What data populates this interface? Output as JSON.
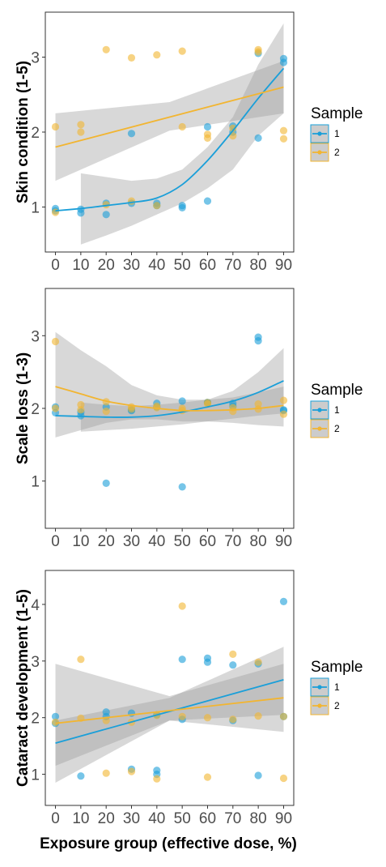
{
  "colors": {
    "sample1": "#1a9fd9",
    "sample2": "#f2b531",
    "band": "#9e9e9e"
  },
  "xlabel": "Exposure group (effective dose, %)",
  "chart_data": [
    {
      "type": "scatter",
      "ylabel": "Skin condition (1-5)",
      "ylim": [
        0.4,
        3.6
      ],
      "yticks": [
        1,
        2,
        3
      ],
      "xlim": [
        -4,
        94
      ],
      "xticks": [
        0,
        10,
        20,
        30,
        40,
        50,
        60,
        70,
        80,
        90
      ],
      "grid": false,
      "legend": {
        "title": "Sample",
        "position": "right",
        "items": [
          "1",
          "2"
        ]
      },
      "series": [
        {
          "name": "1",
          "points": [
            [
              0,
              0.98
            ],
            [
              0,
              0.95
            ],
            [
              10,
              0.97
            ],
            [
              10,
              0.92
            ],
            [
              20,
              1.05
            ],
            [
              20,
              0.9
            ],
            [
              30,
              1.98
            ],
            [
              30,
              1.05
            ],
            [
              40,
              1.05
            ],
            [
              40,
              1.02
            ],
            [
              50,
              1.02
            ],
            [
              50,
              0.99
            ],
            [
              60,
              2.07
            ],
            [
              60,
              1.08
            ],
            [
              70,
              2.08
            ],
            [
              70,
              2.0
            ],
            [
              80,
              3.05
            ],
            [
              80,
              1.92
            ],
            [
              90,
              2.98
            ],
            [
              90,
              2.93
            ]
          ],
          "fit": {
            "kind": "smooth-curve",
            "x": [
              0,
              10,
              20,
              30,
              40,
              50,
              60,
              70,
              80,
              90
            ],
            "y": [
              0.95,
              0.98,
              1.02,
              1.06,
              1.12,
              1.3,
              1.62,
              2.02,
              2.45,
              2.85
            ]
          },
          "ci": {
            "x": [
              10,
              20,
              30,
              40,
              50,
              60,
              70,
              80,
              90
            ],
            "lower": [
              0.5,
              0.62,
              0.75,
              0.9,
              1.05,
              1.25,
              1.5,
              1.95,
              2.25
            ],
            "upper": [
              1.45,
              1.4,
              1.35,
              1.38,
              1.5,
              1.8,
              2.2,
              2.9,
              3.45
            ]
          }
        },
        {
          "name": "2",
          "points": [
            [
              0,
              2.07
            ],
            [
              0,
              0.93
            ],
            [
              10,
              2.1
            ],
            [
              10,
              2.0
            ],
            [
              20,
              3.1
            ],
            [
              20,
              1.03
            ],
            [
              30,
              2.99
            ],
            [
              30,
              1.08
            ],
            [
              40,
              3.03
            ],
            [
              40,
              1.02
            ],
            [
              50,
              3.08
            ],
            [
              50,
              2.07
            ],
            [
              60,
              1.92
            ],
            [
              60,
              1.97
            ],
            [
              70,
              2.05
            ],
            [
              70,
              1.95
            ],
            [
              80,
              3.1
            ],
            [
              80,
              3.07
            ],
            [
              90,
              2.02
            ],
            [
              90,
              1.91
            ]
          ],
          "fit": {
            "kind": "linear",
            "x": [
              0,
              90
            ],
            "y": [
              1.8,
              2.6
            ]
          },
          "ci": {
            "x": [
              0,
              45,
              90
            ],
            "lower": [
              1.35,
              2.02,
              2.25
            ],
            "upper": [
              2.25,
              2.4,
              2.95
            ]
          }
        }
      ]
    },
    {
      "type": "scatter",
      "ylabel": "Scale loss (1-3)",
      "ylim": [
        0.35,
        3.65
      ],
      "yticks": [
        1,
        2,
        3
      ],
      "xlim": [
        -4,
        94
      ],
      "xticks": [
        0,
        10,
        20,
        30,
        40,
        50,
        60,
        70,
        80,
        90
      ],
      "grid": false,
      "legend": {
        "title": "Sample",
        "position": "right",
        "items": [
          "1",
          "2"
        ]
      },
      "series": [
        {
          "name": "1",
          "points": [
            [
              0,
              2.02
            ],
            [
              0,
              1.94
            ],
            [
              10,
              1.95
            ],
            [
              10,
              1.9
            ],
            [
              20,
              2.02
            ],
            [
              20,
              0.97
            ],
            [
              30,
              1.97
            ],
            [
              30,
              1.98
            ],
            [
              40,
              2.07
            ],
            [
              40,
              2.02
            ],
            [
              50,
              2.1
            ],
            [
              50,
              0.92
            ],
            [
              60,
              2.08
            ],
            [
              60,
              2.08
            ],
            [
              70,
              2.07
            ],
            [
              70,
              2.03
            ],
            [
              80,
              2.98
            ],
            [
              80,
              2.93
            ],
            [
              90,
              1.98
            ],
            [
              90,
              1.97
            ]
          ],
          "fit": {
            "kind": "smooth-curve",
            "x": [
              0,
              10,
              20,
              30,
              40,
              50,
              60,
              70,
              80,
              90
            ],
            "y": [
              1.9,
              1.89,
              1.88,
              1.88,
              1.9,
              1.95,
              2.02,
              2.1,
              2.22,
              2.38
            ]
          },
          "ci": {
            "x": [
              10,
              20,
              30,
              40,
              50,
              60,
              70,
              80,
              90
            ],
            "lower": [
              1.68,
              1.7,
              1.72,
              1.75,
              1.78,
              1.82,
              1.86,
              1.9,
              1.93
            ],
            "upper": [
              2.08,
              2.05,
              2.03,
              2.05,
              2.08,
              2.12,
              2.24,
              2.5,
              2.83
            ]
          }
        },
        {
          "name": "2",
          "points": [
            [
              0,
              2.92
            ],
            [
              0,
              2.0
            ],
            [
              10,
              2.05
            ],
            [
              10,
              1.98
            ],
            [
              20,
              2.09
            ],
            [
              20,
              1.96
            ],
            [
              30,
              2.02
            ],
            [
              30,
              1.99
            ],
            [
              40,
              2.03
            ],
            [
              40,
              2.01
            ],
            [
              50,
              2.0
            ],
            [
              50,
              1.97
            ],
            [
              60,
              2.08
            ],
            [
              60,
              2.06
            ],
            [
              70,
              1.96
            ],
            [
              70,
              2.01
            ],
            [
              80,
              2.06
            ],
            [
              80,
              1.99
            ],
            [
              90,
              2.11
            ],
            [
              90,
              1.92
            ]
          ],
          "fit": {
            "kind": "smooth-curve",
            "x": [
              0,
              10,
              20,
              30,
              40,
              50,
              60,
              70,
              80,
              90
            ],
            "y": [
              2.3,
              2.2,
              2.1,
              2.04,
              2.0,
              1.97,
              1.97,
              1.98,
              2.0,
              2.04
            ]
          },
          "ci": {
            "x": [
              0,
              10,
              20,
              30,
              40,
              50,
              60,
              70,
              80,
              90
            ],
            "lower": [
              1.6,
              1.7,
              1.8,
              1.85,
              1.85,
              1.82,
              1.82,
              1.8,
              1.77,
              1.75
            ],
            "upper": [
              3.05,
              2.8,
              2.58,
              2.32,
              2.18,
              2.12,
              2.12,
              2.15,
              2.22,
              2.3
            ]
          }
        }
      ]
    },
    {
      "type": "scatter",
      "ylabel": "Cataract development (1-5)",
      "ylim": [
        0.45,
        4.6
      ],
      "yticks": [
        1,
        2,
        3,
        4
      ],
      "xlim": [
        -4,
        94
      ],
      "xticks": [
        0,
        10,
        20,
        30,
        40,
        50,
        60,
        70,
        80,
        90
      ],
      "grid": false,
      "legend": {
        "title": "Sample",
        "position": "right",
        "items": [
          "1",
          "2"
        ]
      },
      "series": [
        {
          "name": "1",
          "points": [
            [
              0,
              2.02
            ],
            [
              0,
              1.9
            ],
            [
              10,
              0.97
            ],
            [
              20,
              2.1
            ],
            [
              20,
              2.02
            ],
            [
              30,
              2.08
            ],
            [
              30,
              1.09
            ],
            [
              40,
              1.07
            ],
            [
              40,
              1.0
            ],
            [
              40,
              2.05
            ],
            [
              50,
              3.03
            ],
            [
              50,
              1.97
            ],
            [
              60,
              3.05
            ],
            [
              60,
              2.98
            ],
            [
              70,
              2.93
            ],
            [
              70,
              1.95
            ],
            [
              80,
              2.95
            ],
            [
              80,
              0.98
            ],
            [
              90,
              4.05
            ],
            [
              90,
              2.02
            ]
          ],
          "fit": {
            "kind": "linear",
            "x": [
              0,
              90
            ],
            "y": [
              1.55,
              2.67
            ]
          },
          "ci": {
            "x": [
              0,
              45,
              90
            ],
            "lower": [
              1.15,
              1.95,
              2.05
            ],
            "upper": [
              1.95,
              2.35,
              3.25
            ]
          }
        },
        {
          "name": "2",
          "points": [
            [
              0,
              1.92
            ],
            [
              10,
              3.03
            ],
            [
              10,
              1.99
            ],
            [
              20,
              1.95
            ],
            [
              20,
              1.02
            ],
            [
              30,
              1.92
            ],
            [
              30,
              1.05
            ],
            [
              40,
              0.92
            ],
            [
              40,
              2.04
            ],
            [
              50,
              3.97
            ],
            [
              50,
              2.02
            ],
            [
              60,
              0.95
            ],
            [
              60,
              2.0
            ],
            [
              70,
              3.12
            ],
            [
              70,
              1.97
            ],
            [
              80,
              2.98
            ],
            [
              80,
              2.03
            ],
            [
              90,
              2.02
            ],
            [
              90,
              0.93
            ]
          ],
          "fit": {
            "kind": "linear",
            "x": [
              0,
              90
            ],
            "y": [
              1.9,
              2.35
            ]
          },
          "ci": {
            "x": [
              0,
              45,
              90
            ],
            "lower": [
              0.85,
              1.95,
              1.75
            ],
            "upper": [
              2.95,
              2.38,
              2.95
            ]
          }
        }
      ]
    }
  ]
}
